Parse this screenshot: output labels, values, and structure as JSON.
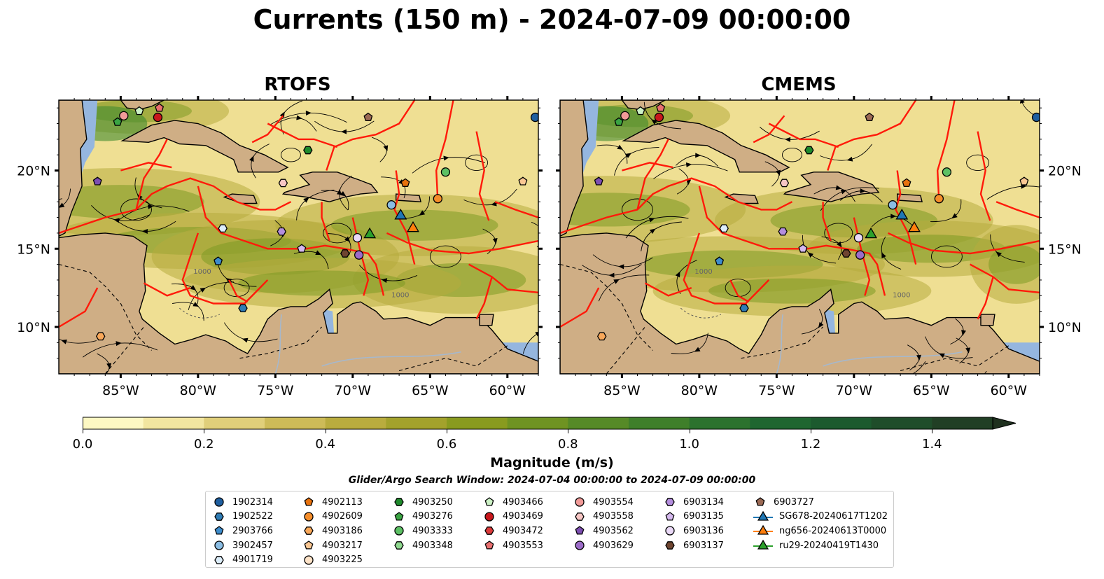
{
  "title": "Currents (150 m) - 2024-07-09 00:00:00",
  "panels": [
    {
      "title": "RTOFS"
    },
    {
      "title": "CMEMS"
    }
  ],
  "map_axes": {
    "lon_ticks": [
      "85°W",
      "80°W",
      "75°W",
      "70°W",
      "65°W",
      "60°W"
    ],
    "lat_ticks_left": [
      "20°N",
      "15°N",
      "10°N"
    ],
    "lat_ticks_right": [
      "20°N",
      "15°N",
      "10°N"
    ],
    "lon_range": [
      -89,
      -58
    ],
    "lat_range": [
      7,
      24.5
    ],
    "contour_label": "1000"
  },
  "colorbar": {
    "ticks": [
      "0.0",
      "0.2",
      "0.4",
      "0.6",
      "0.8",
      "1.0",
      "1.2",
      "1.4"
    ],
    "range": [
      0,
      1.5
    ],
    "label": "Magnitude (m/s)",
    "colors": [
      "#fdf8c3",
      "#f2e6a0",
      "#e0cf7a",
      "#cdbb58",
      "#b9ac3e",
      "#a3a22c",
      "#899b1f",
      "#6f9322",
      "#568a27",
      "#3f7f2a",
      "#2c722e",
      "#1f6630",
      "#1c5a2e",
      "#1f4d2a",
      "#213f25",
      "#1f311f"
    ]
  },
  "search_window": "Glider/Argo Search Window: 2024-07-04 00:00:00 to 2024-07-09 00:00:00",
  "legend": {
    "columns": [
      [
        {
          "label": "1902314",
          "marker": "circle",
          "color": "#1f5fa0"
        },
        {
          "label": "1902522",
          "marker": "hexagon",
          "color": "#2f7cb4"
        },
        {
          "label": "2903766",
          "marker": "pentagon",
          "color": "#3d8ccc"
        },
        {
          "label": "3902457",
          "marker": "circle",
          "color": "#8bbde3"
        },
        {
          "label": "4901719",
          "marker": "hexagon",
          "color": "#ddeefa"
        }
      ],
      [
        {
          "label": "4902113",
          "marker": "pentagon",
          "color": "#e8720d"
        },
        {
          "label": "4902609",
          "marker": "circle",
          "color": "#f58d2a"
        },
        {
          "label": "4903186",
          "marker": "hexagon",
          "color": "#f9a85a"
        },
        {
          "label": "4903217",
          "marker": "pentagon",
          "color": "#fbc793"
        },
        {
          "label": "4903225",
          "marker": "circle",
          "color": "#fde3c8"
        }
      ],
      [
        {
          "label": "4903250",
          "marker": "hexagon",
          "color": "#1f8a2c"
        },
        {
          "label": "4903276",
          "marker": "pentagon",
          "color": "#3aa443"
        },
        {
          "label": "4903333",
          "marker": "circle",
          "color": "#5cc064"
        },
        {
          "label": "4903348",
          "marker": "hexagon",
          "color": "#8fd88f"
        }
      ],
      [
        {
          "label": "4903466",
          "marker": "pentagon",
          "color": "#cdf2c6"
        },
        {
          "label": "4903469",
          "marker": "circle",
          "color": "#c8171c"
        },
        {
          "label": "4903472",
          "marker": "hexagon",
          "color": "#dc3a3a"
        },
        {
          "label": "4903553",
          "marker": "pentagon",
          "color": "#e97070"
        }
      ],
      [
        {
          "label": "4903554",
          "marker": "circle",
          "color": "#f19a98"
        },
        {
          "label": "4903558",
          "marker": "hexagon",
          "color": "#f7c6c4"
        },
        {
          "label": "4903562",
          "marker": "pentagon",
          "color": "#7d4fb1"
        },
        {
          "label": "4903629",
          "marker": "circle",
          "color": "#9c6cc8"
        }
      ],
      [
        {
          "label": "6903134",
          "marker": "hexagon",
          "color": "#b48ede"
        },
        {
          "label": "6903135",
          "marker": "pentagon",
          "color": "#d5b9ee"
        },
        {
          "label": "6903136",
          "marker": "circle",
          "color": "#ead9f7"
        },
        {
          "label": "6903137",
          "marker": "hexagon",
          "color": "#6e4430"
        }
      ],
      [
        {
          "label": "6903727",
          "marker": "pentagon",
          "color": "#9c6a55"
        },
        {
          "label": "SG678-20240617T1202",
          "marker": "triangle-line",
          "color": "#1f77b4"
        },
        {
          "label": "ng656-20240613T0000",
          "marker": "triangle-line",
          "color": "#ff7f0e"
        },
        {
          "label": "ru29-20240419T1430",
          "marker": "triangle-line",
          "color": "#2ca02c"
        }
      ]
    ]
  },
  "floats": [
    {
      "color": "#1f5fa0",
      "marker": "circle",
      "lon": -58.2,
      "lat": 23.4
    },
    {
      "color": "#f58d2a",
      "marker": "circle",
      "lon": -64.5,
      "lat": 18.2
    },
    {
      "color": "#e8720d",
      "marker": "pentagon",
      "lon": -66.6,
      "lat": 19.2
    },
    {
      "color": "#8bbde3",
      "marker": "circle",
      "lon": -67.5,
      "lat": 17.8
    },
    {
      "color": "#5cc064",
      "marker": "circle",
      "lon": -64.0,
      "lat": 19.9
    },
    {
      "color": "#fbc793",
      "marker": "pentagon",
      "lon": -59.0,
      "lat": 19.3
    },
    {
      "color": "#9c6a55",
      "marker": "pentagon",
      "lon": -69.0,
      "lat": 23.4
    },
    {
      "color": "#1f8a2c",
      "marker": "hexagon",
      "lon": -72.9,
      "lat": 21.3
    },
    {
      "color": "#f7c6c4",
      "marker": "hexagon",
      "lon": -74.5,
      "lat": 19.2
    },
    {
      "color": "#c8171c",
      "marker": "circle",
      "lon": -82.6,
      "lat": 23.4
    },
    {
      "color": "#f19a98",
      "marker": "circle",
      "lon": -84.8,
      "lat": 23.5
    },
    {
      "color": "#cdf2c6",
      "marker": "pentagon",
      "lon": -83.8,
      "lat": 23.8
    },
    {
      "color": "#e97070",
      "marker": "pentagon",
      "lon": -82.5,
      "lat": 24.0
    },
    {
      "color": "#3aa443",
      "marker": "pentagon",
      "lon": -85.2,
      "lat": 23.1
    },
    {
      "color": "#7d4fb1",
      "marker": "pentagon",
      "lon": -86.5,
      "lat": 19.3
    },
    {
      "color": "#ddeefa",
      "marker": "hexagon",
      "lon": -78.4,
      "lat": 16.3
    },
    {
      "color": "#2f7cb4",
      "marker": "hexagon",
      "lon": -77.1,
      "lat": 11.2
    },
    {
      "color": "#3d8ccc",
      "marker": "pentagon",
      "lon": -78.7,
      "lat": 14.2
    },
    {
      "color": "#f9a85a",
      "marker": "hexagon",
      "lon": -86.3,
      "lat": 9.4
    },
    {
      "color": "#b48ede",
      "marker": "hexagon",
      "lon": -74.6,
      "lat": 16.1
    },
    {
      "color": "#d5b9ee",
      "marker": "pentagon",
      "lon": -73.3,
      "lat": 15.0
    },
    {
      "color": "#ead9f7",
      "marker": "circle",
      "lon": -69.7,
      "lat": 15.7
    },
    {
      "color": "#6e4430",
      "marker": "hexagon",
      "lon": -70.5,
      "lat": 14.7
    },
    {
      "color": "#9c6cc8",
      "marker": "circle",
      "lon": -69.6,
      "lat": 14.6
    }
  ],
  "gliders": [
    {
      "color": "#1f77b4",
      "lon": -66.9,
      "lat": 17.1
    },
    {
      "color": "#ff7f0e",
      "lon": -66.1,
      "lat": 16.3
    },
    {
      "color": "#2ca02c",
      "lon": -68.9,
      "lat": 15.9
    }
  ]
}
